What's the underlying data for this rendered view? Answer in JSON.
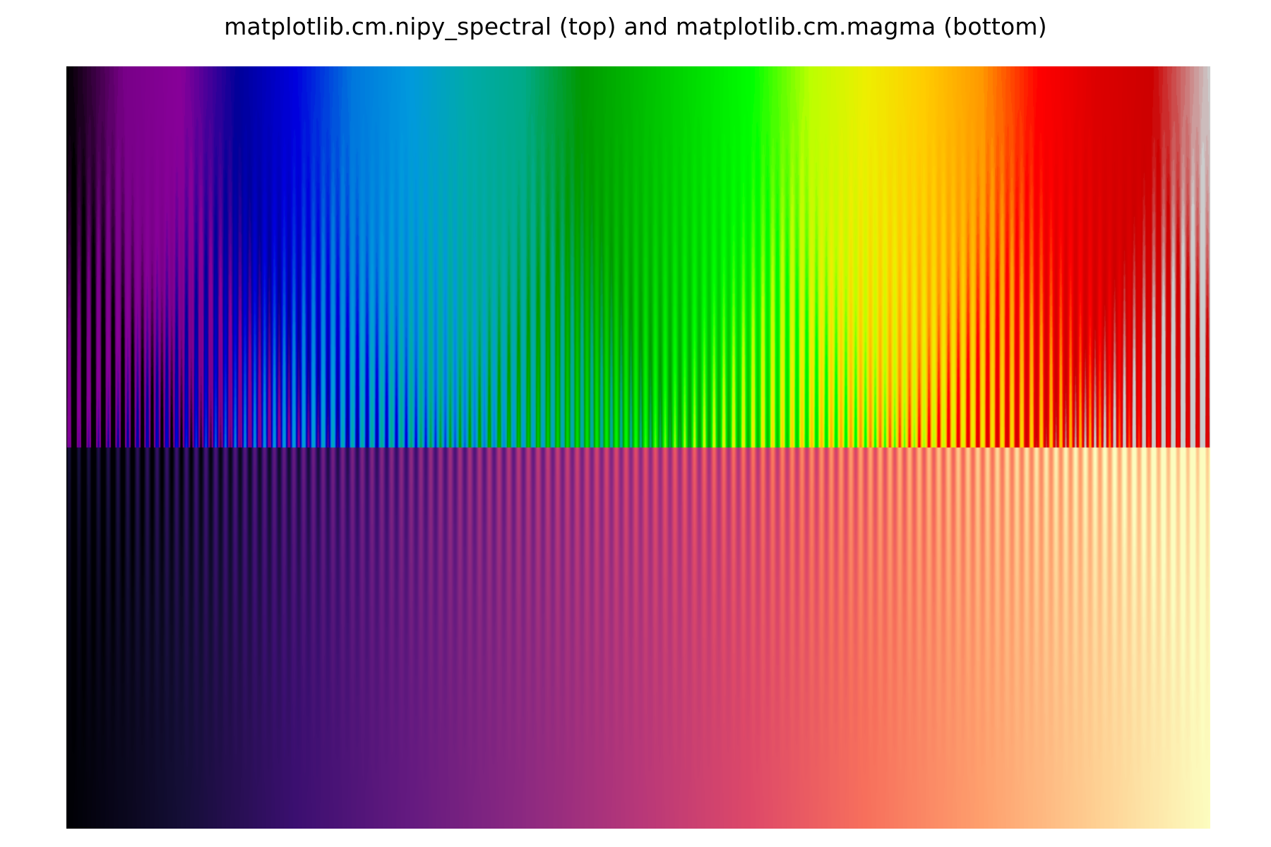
{
  "chart_data": {
    "type": "heatmap",
    "title": "matplotlib.cm.nipy_spectral (top) and matplotlib.cm.magma (bottom)",
    "xlabel": "",
    "ylabel": "",
    "axes_visible": false,
    "grid": false,
    "legend": "none",
    "panels": [
      {
        "position": "top",
        "colormap": "nipy_spectral",
        "fringe_concentration": "bottom",
        "colormap_stops": [
          {
            "t": 0.0,
            "color": "#000000"
          },
          {
            "t": 0.05,
            "color": "#780088"
          },
          {
            "t": 0.1,
            "color": "#880099"
          },
          {
            "t": 0.15,
            "color": "#000099"
          },
          {
            "t": 0.2,
            "color": "#0000dd"
          },
          {
            "t": 0.25,
            "color": "#0077dd"
          },
          {
            "t": 0.3,
            "color": "#0099dd"
          },
          {
            "t": 0.35,
            "color": "#00aaaa"
          },
          {
            "t": 0.4,
            "color": "#00aa88"
          },
          {
            "t": 0.45,
            "color": "#009900"
          },
          {
            "t": 0.5,
            "color": "#00bb00"
          },
          {
            "t": 0.55,
            "color": "#00dd00"
          },
          {
            "t": 0.6,
            "color": "#00ff00"
          },
          {
            "t": 0.65,
            "color": "#bbff00"
          },
          {
            "t": 0.7,
            "color": "#eeee00"
          },
          {
            "t": 0.75,
            "color": "#ffcc00"
          },
          {
            "t": 0.8,
            "color": "#ff9900"
          },
          {
            "t": 0.85,
            "color": "#ff0000"
          },
          {
            "t": 0.9,
            "color": "#dd0000"
          },
          {
            "t": 0.95,
            "color": "#cc0000"
          },
          {
            "t": 1.0,
            "color": "#cccccc"
          }
        ]
      },
      {
        "position": "bottom",
        "colormap": "magma",
        "fringe_concentration": "top",
        "colormap_stops": [
          {
            "t": 0.0,
            "color": "#000004"
          },
          {
            "t": 0.1,
            "color": "#140e36"
          },
          {
            "t": 0.2,
            "color": "#3b0f70"
          },
          {
            "t": 0.3,
            "color": "#641a80"
          },
          {
            "t": 0.4,
            "color": "#8c2981"
          },
          {
            "t": 0.5,
            "color": "#b73779"
          },
          {
            "t": 0.6,
            "color": "#de4968"
          },
          {
            "t": 0.7,
            "color": "#f7705c"
          },
          {
            "t": 0.8,
            "color": "#fe9f6d"
          },
          {
            "t": 0.9,
            "color": "#fecf92"
          },
          {
            "t": 1.0,
            "color": "#fcfdbf"
          }
        ]
      }
    ],
    "pattern": {
      "description": "ramp from 0 to 1 across, with a sinusoidal modulation whose amplitude grows toward the fringe edge",
      "x_range": [
        0,
        1
      ],
      "value_range": [
        0,
        1
      ],
      "stripe_count": 117,
      "modulation_amplitude_max": 0.11,
      "modulation_exponent": 2
    }
  }
}
